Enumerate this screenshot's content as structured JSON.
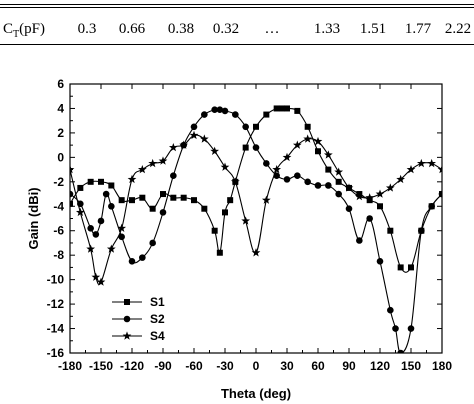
{
  "table": {
    "header_label": "C",
    "header_sub": "T",
    "header_unit": "(pF)",
    "cells": [
      "0.3",
      "0.66",
      "0.38",
      "0.32",
      "…",
      "1.33",
      "1.51",
      "1.77",
      "2.22"
    ]
  },
  "chart_data": {
    "type": "line",
    "title": "",
    "xlabel": "Theta (deg)",
    "ylabel": "Gain (dBi)",
    "xlim": [
      -180,
      180
    ],
    "ylim": [
      -16,
      6
    ],
    "xticks": [
      -180,
      -150,
      -120,
      -90,
      -60,
      -30,
      0,
      30,
      60,
      90,
      120,
      150,
      180
    ],
    "yticks": [
      -16,
      -14,
      -12,
      -10,
      -8,
      -6,
      -4,
      -2,
      0,
      2,
      4,
      6
    ],
    "grid": false,
    "legend": "bottom-left",
    "series": [
      {
        "name": "S1",
        "marker": "square",
        "x": [
          -180,
          -170,
          -160,
          -150,
          -140,
          -130,
          -120,
          -110,
          -100,
          -90,
          -80,
          -70,
          -60,
          -50,
          -40,
          -35,
          -30,
          -25,
          -20,
          -10,
          0,
          10,
          20,
          25,
          30,
          40,
          50,
          60,
          70,
          80,
          90,
          100,
          110,
          120,
          130,
          140,
          150,
          160,
          170,
          180
        ],
        "y": [
          -3.8,
          -2.5,
          -2.0,
          -2.0,
          -2.3,
          -3.5,
          -3.5,
          -3.3,
          -4.2,
          -3.0,
          -3.3,
          -3.3,
          -3.5,
          -4.2,
          -6.0,
          -7.8,
          -4.5,
          -3.5,
          -2.0,
          0.8,
          2.5,
          3.5,
          4.0,
          4.0,
          4.0,
          3.8,
          2.5,
          0.5,
          -1.0,
          -2.0,
          -2.5,
          -3.0,
          -3.5,
          -4.0,
          -6.0,
          -9.0,
          -9.0,
          -6.0,
          -4.0,
          -3.0
        ]
      },
      {
        "name": "S2",
        "marker": "circle",
        "x": [
          -180,
          -170,
          -160,
          -155,
          -150,
          -145,
          -140,
          -130,
          -120,
          -110,
          -100,
          -90,
          -80,
          -70,
          -60,
          -50,
          -40,
          -35,
          -30,
          -20,
          -10,
          0,
          10,
          20,
          30,
          40,
          50,
          60,
          70,
          80,
          90,
          100,
          110,
          120,
          130,
          135,
          140,
          150,
          160,
          170,
          180
        ],
        "y": [
          -3.0,
          -3.8,
          -5.8,
          -6.3,
          -5.2,
          -3.0,
          -4.0,
          -6.5,
          -8.5,
          -8.2,
          -7.0,
          -4.5,
          -1.5,
          1.0,
          2.5,
          3.5,
          3.9,
          3.9,
          3.8,
          3.5,
          2.5,
          0.8,
          -0.5,
          -1.5,
          -1.8,
          -1.5,
          -2.0,
          -2.3,
          -2.3,
          -3.0,
          -4.2,
          -6.8,
          -5.0,
          -8.5,
          -12.5,
          -14.0,
          -16.0,
          -14.0,
          -6.0,
          -4.0,
          -3.0
        ]
      },
      {
        "name": "S4",
        "marker": "star",
        "x": [
          -180,
          -170,
          -160,
          -155,
          -150,
          -140,
          -130,
          -120,
          -110,
          -100,
          -90,
          -80,
          -70,
          -60,
          -50,
          -40,
          -30,
          -20,
          -10,
          0,
          10,
          20,
          30,
          40,
          50,
          60,
          70,
          80,
          90,
          100,
          110,
          120,
          130,
          140,
          150,
          160,
          170,
          180
        ],
        "y": [
          -1.0,
          -4.5,
          -7.5,
          -9.8,
          -10.2,
          -7.5,
          -5.8,
          -1.8,
          -1.0,
          -0.5,
          -0.3,
          0.8,
          1.0,
          1.8,
          1.5,
          0.5,
          -0.8,
          -2.0,
          -5.2,
          -7.8,
          -3.5,
          -1.0,
          0.0,
          1.0,
          1.5,
          1.3,
          0.2,
          -1.2,
          -2.5,
          -3.2,
          -3.3,
          -3.0,
          -2.5,
          -1.8,
          -1.0,
          -0.5,
          -0.5,
          -1.0
        ]
      }
    ]
  }
}
